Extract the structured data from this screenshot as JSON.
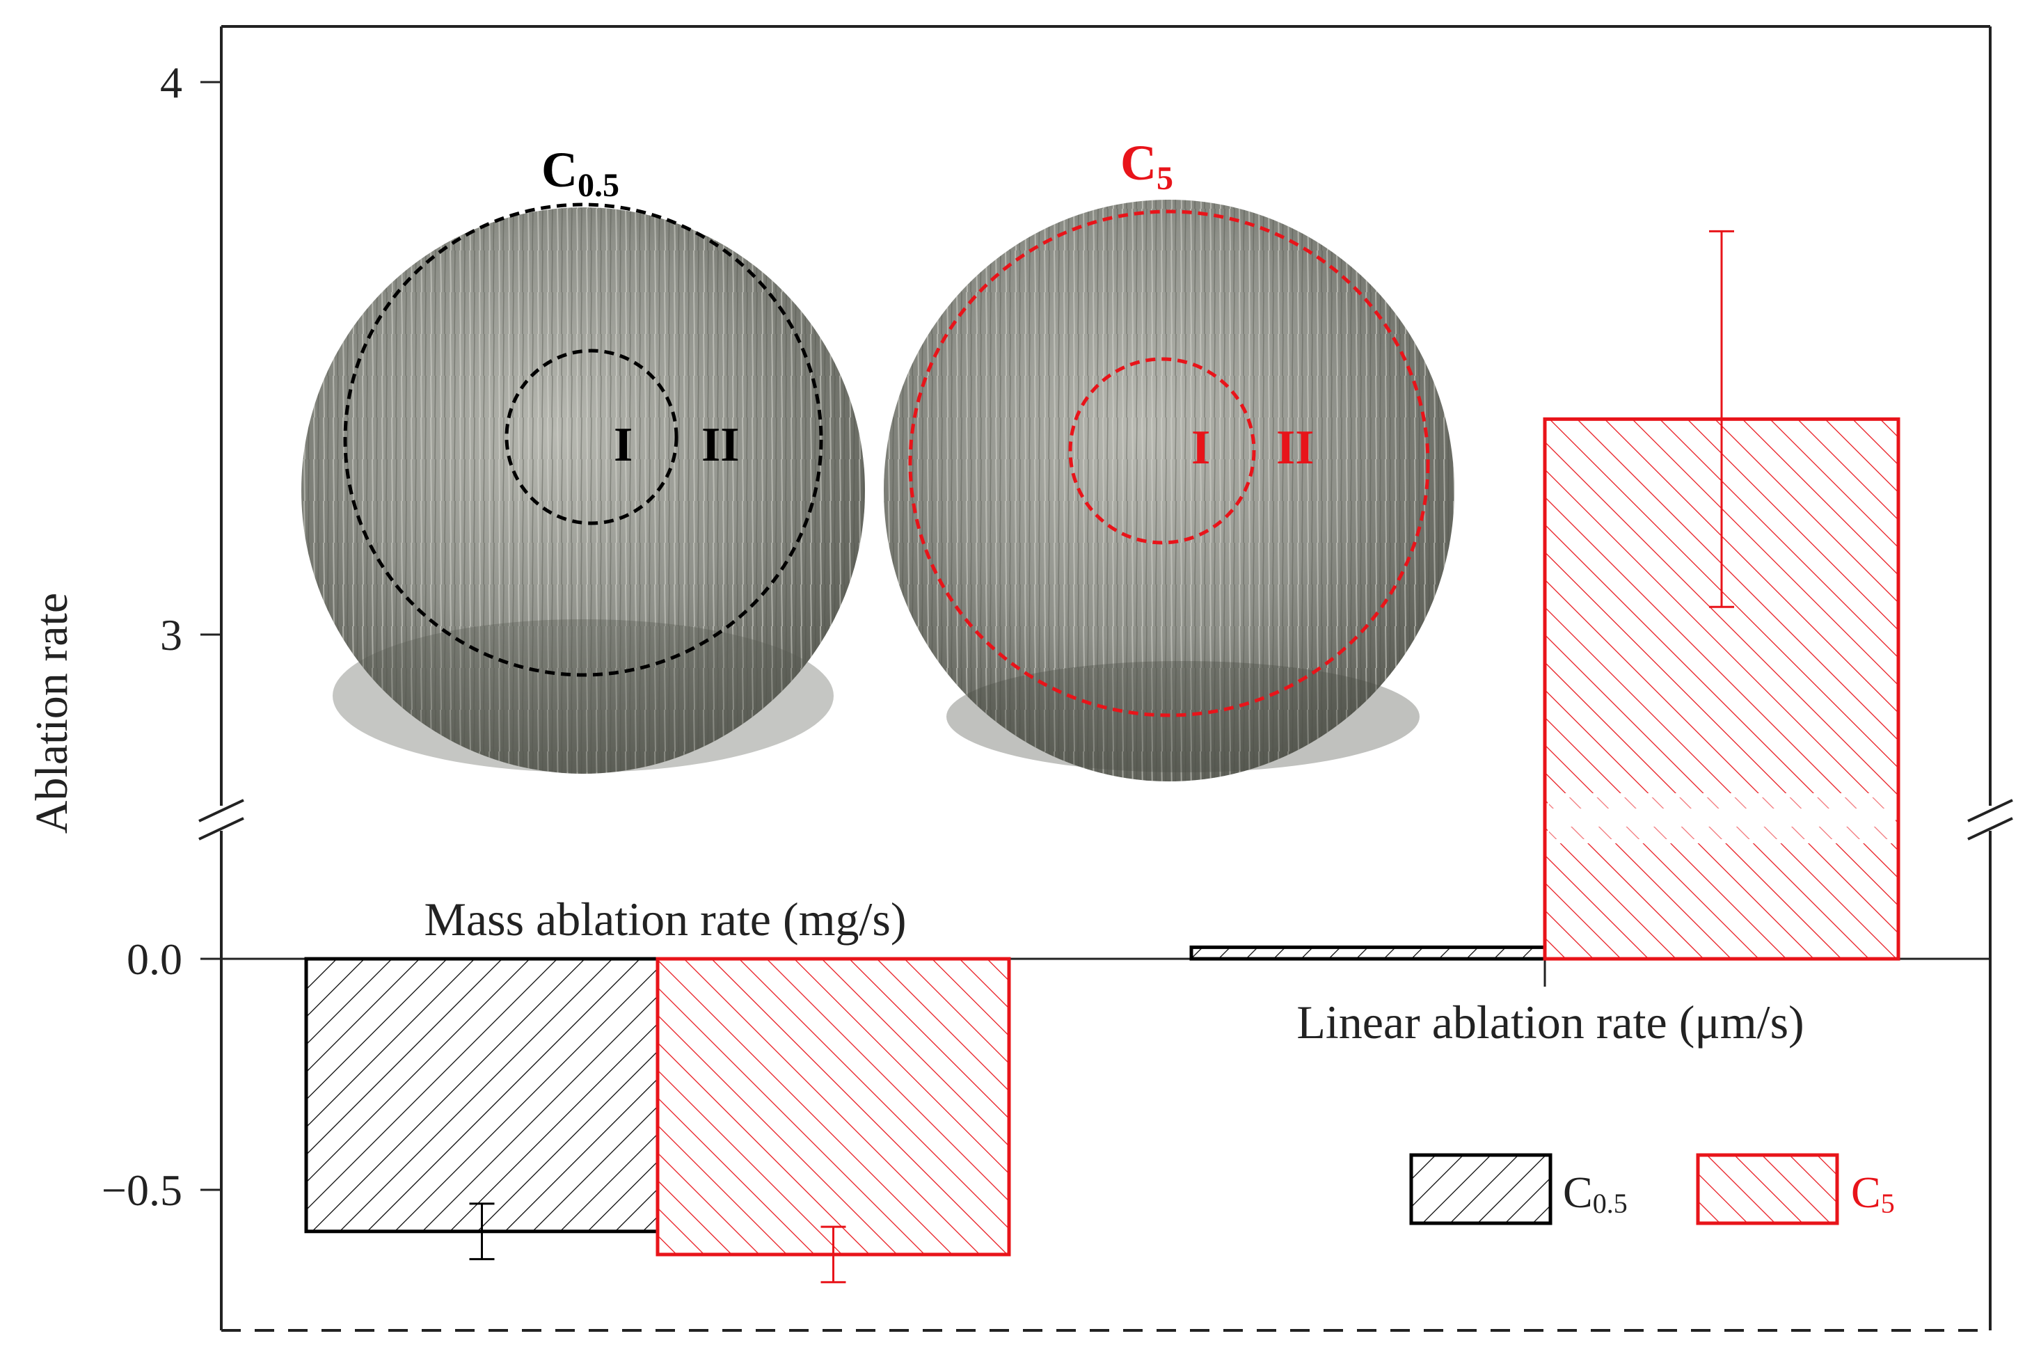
{
  "colors": {
    "c05": "#000000",
    "c5": "#e8141a",
    "axis": "#222222"
  },
  "chart_data": {
    "type": "bar",
    "ylabel": "Ablation rate",
    "broken_axis": true,
    "lower_ylim": [
      -0.8,
      0.15
    ],
    "upper_ylim": [
      2.6,
      4.1
    ],
    "lower_ticks": [
      "0.0",
      "-0.5"
    ],
    "upper_ticks": [
      "4",
      "3"
    ],
    "grid": false,
    "legend_position": "bottom-right",
    "categories": [
      "Mass ablation rate (mg/s)",
      "Linear ablation rate (μm/s)"
    ],
    "series": [
      {
        "name": "C0.5",
        "values": [
          -0.59,
          0.025
        ],
        "error": [
          0.06,
          0.0
        ]
      },
      {
        "name": "C5",
        "values": [
          -0.64,
          3.39
        ],
        "error": [
          0.06,
          0.34
        ]
      }
    ]
  },
  "labels": {
    "ylabel": "Ablation rate",
    "cat_mass": "Mass ablation rate (mg/s)",
    "cat_linear": "Linear ablation rate (μm/s)",
    "tick_4": "4",
    "tick_3": "3",
    "tick_0": "0.0",
    "tick_m05": "−0.5",
    "legend_c05_base": "C",
    "legend_c05_sub": "0.5",
    "legend_c5_base": "C",
    "legend_c5_sub": "5"
  },
  "photos": {
    "left": {
      "title_base": "C",
      "title_sub": "0.5",
      "region_inner": "I",
      "region_outer": "II"
    },
    "right": {
      "title_base": "C",
      "title_sub": "5",
      "region_inner": "I",
      "region_outer": "II"
    }
  }
}
